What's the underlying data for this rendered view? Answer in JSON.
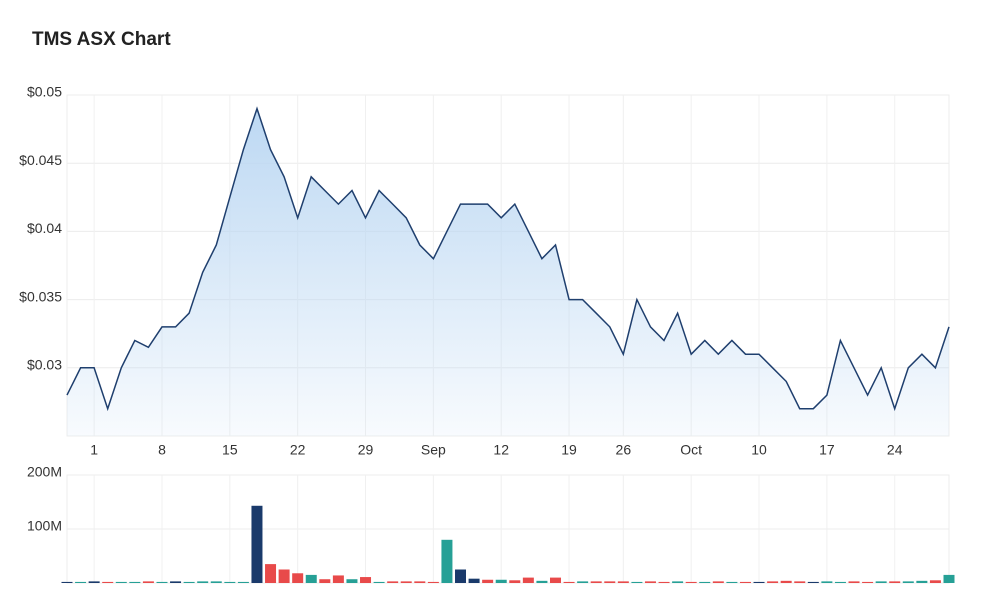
{
  "chart_data": [
    {
      "type": "line",
      "title": "TMS ASX Chart",
      "color": "#1f3f6e",
      "fill": "#b9d6f2",
      "grid": true,
      "categories": [
        null,
        null,
        "1",
        null,
        null,
        null,
        null,
        "8",
        null,
        null,
        null,
        null,
        "15",
        null,
        null,
        null,
        null,
        "22",
        null,
        null,
        null,
        null,
        "29",
        null,
        null,
        null,
        null,
        "Sep",
        null,
        null,
        null,
        null,
        "12",
        null,
        null,
        null,
        null,
        "19",
        null,
        null,
        null,
        "26",
        null,
        null,
        null,
        null,
        "Oct",
        null,
        null,
        null,
        null,
        "10",
        null,
        null,
        null,
        null,
        "17",
        null,
        null,
        null,
        null,
        "24",
        null,
        null,
        null,
        null
      ],
      "values": [
        0.028,
        0.03,
        0.03,
        0.027,
        0.03,
        0.032,
        0.0315,
        0.033,
        0.033,
        0.034,
        0.037,
        0.039,
        0.0425,
        0.046,
        0.049,
        0.046,
        0.044,
        0.041,
        0.044,
        0.043,
        0.042,
        0.043,
        0.041,
        0.043,
        0.042,
        0.041,
        0.039,
        0.038,
        0.04,
        0.042,
        0.042,
        0.042,
        0.041,
        0.042,
        0.04,
        0.038,
        0.039,
        0.035,
        0.035,
        0.034,
        0.033,
        0.031,
        0.035,
        0.033,
        0.032,
        0.034,
        0.031,
        0.032,
        0.031,
        0.032,
        0.031,
        0.031,
        0.03,
        0.029,
        0.027,
        0.027,
        0.028,
        0.032,
        0.03,
        0.028,
        0.03,
        0.027,
        0.03,
        0.031,
        0.03,
        0.033
      ],
      "ylim": [
        0.025,
        0.05
      ],
      "yticks": [
        {
          "value": 0.03,
          "label": "$0.03"
        },
        {
          "value": 0.035,
          "label": "$0.035"
        },
        {
          "value": 0.04,
          "label": "$0.04"
        },
        {
          "value": 0.045,
          "label": "$0.045"
        },
        {
          "value": 0.05,
          "label": "$0.05"
        }
      ]
    },
    {
      "type": "bar",
      "grid": true,
      "values": [
        2000000,
        2000000,
        3000000,
        2000000,
        2000000,
        2000000,
        3000000,
        2000000,
        3000000,
        2000000,
        3000000,
        3000000,
        2000000,
        2000000,
        143000000,
        35000000,
        25000000,
        18000000,
        15000000,
        7000000,
        14000000,
        7000000,
        11000000,
        2000000,
        3000000,
        3000000,
        3000000,
        2000000,
        80000000,
        25000000,
        8000000,
        6000000,
        6000000,
        5000000,
        10000000,
        4000000,
        10000000,
        2000000,
        3000000,
        3000000,
        3000000,
        3000000,
        2000000,
        3000000,
        2000000,
        3000000,
        2000000,
        2000000,
        3000000,
        2000000,
        2000000,
        2000000,
        3000000,
        4000000,
        3000000,
        2000000,
        3000000,
        2000000,
        3000000,
        2000000,
        3000000,
        3000000,
        3000000,
        4000000,
        5000000,
        15000000
      ],
      "colors": [
        "#1a3a6b",
        "#26a096",
        "#1a3a6b",
        "#e84a4a",
        "#26a096",
        "#26a096",
        "#e84a4a",
        "#26a096",
        "#1a3a6b",
        "#26a096",
        "#26a096",
        "#26a096",
        "#26a096",
        "#26a096",
        "#1a3a6b",
        "#e84a4a",
        "#e84a4a",
        "#e84a4a",
        "#26a096",
        "#e84a4a",
        "#e84a4a",
        "#26a096",
        "#e84a4a",
        "#26a096",
        "#e84a4a",
        "#e84a4a",
        "#e84a4a",
        "#e84a4a",
        "#26a096",
        "#1a3a6b",
        "#1a3a6b",
        "#e84a4a",
        "#26a096",
        "#e84a4a",
        "#e84a4a",
        "#26a096",
        "#e84a4a",
        "#e84a4a",
        "#26a096",
        "#e84a4a",
        "#e84a4a",
        "#e84a4a",
        "#26a096",
        "#e84a4a",
        "#e84a4a",
        "#26a096",
        "#e84a4a",
        "#26a096",
        "#e84a4a",
        "#26a096",
        "#e84a4a",
        "#1a3a6b",
        "#e84a4a",
        "#e84a4a",
        "#e84a4a",
        "#1a3a6b",
        "#26a096",
        "#26a096",
        "#e84a4a",
        "#e84a4a",
        "#26a096",
        "#e84a4a",
        "#26a096",
        "#26a096",
        "#e84a4a",
        "#26a096"
      ],
      "ylim": [
        0,
        200000000
      ],
      "yticks": [
        {
          "value": 100000000,
          "label": "100M"
        },
        {
          "value": 200000000,
          "label": "200M"
        }
      ]
    }
  ]
}
